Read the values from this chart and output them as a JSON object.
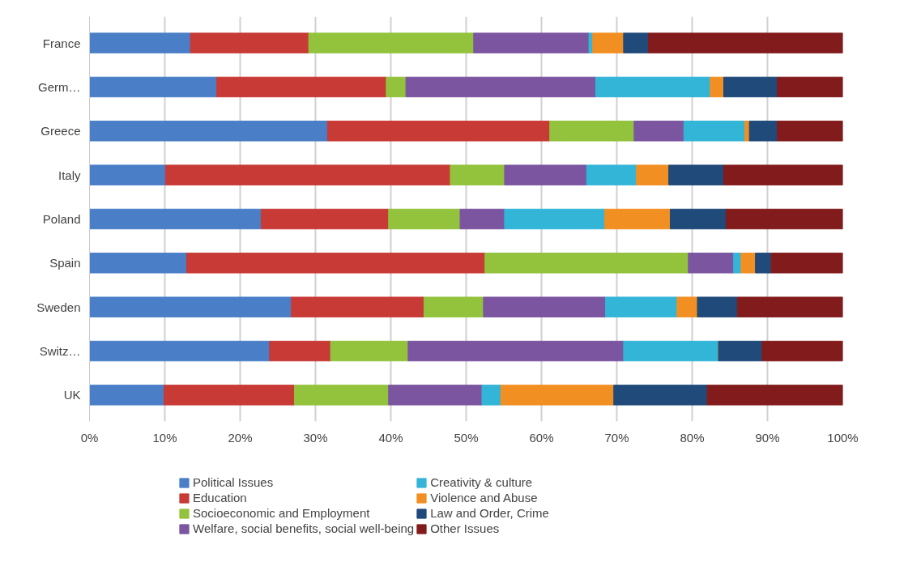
{
  "chart_data": {
    "type": "bar",
    "orientation": "horizontal",
    "stacked": true,
    "categories": [
      "France",
      "Germ…",
      "Greece",
      "Italy",
      "Poland",
      "Spain",
      "Sweden",
      "Switz…",
      "UK"
    ],
    "series": [
      {
        "name": "Political Issues",
        "color": "#4a7fc8",
        "values": [
          13.4,
          16.9,
          31.6,
          10.1,
          22.8,
          12.9,
          26.8,
          23.9,
          9.9
        ]
      },
      {
        "name": "Education",
        "color": "#c83a36",
        "values": [
          15.7,
          22.5,
          29.5,
          37.8,
          16.9,
          39.6,
          17.6,
          8.1,
          17.3
        ]
      },
      {
        "name": "Socioeconomic and Employment",
        "color": "#93c23c",
        "values": [
          21.9,
          2.6,
          11.2,
          7.2,
          9.5,
          27.0,
          7.9,
          10.3,
          12.5
        ]
      },
      {
        "name": "Welfare, social benefits, social well-being",
        "color": "#7b55a0",
        "values": [
          15.3,
          25.2,
          6.6,
          10.9,
          5.9,
          6.0,
          16.2,
          28.6,
          12.4
        ]
      },
      {
        "name": "Creativity & culture",
        "color": "#33b5d8",
        "values": [
          0.5,
          15.2,
          8.1,
          6.6,
          13.3,
          1.0,
          9.5,
          12.6,
          2.5
        ]
      },
      {
        "name": "Violence and Abuse",
        "color": "#f28f22",
        "values": [
          4.1,
          1.8,
          0.6,
          4.3,
          8.7,
          1.9,
          2.7,
          0,
          15.0
        ]
      },
      {
        "name": "Law and Order, Crime",
        "color": "#1f4a7a",
        "values": [
          3.3,
          7.1,
          3.7,
          7.3,
          7.4,
          2.1,
          5.3,
          5.8,
          12.4
        ]
      },
      {
        "name": "Other Issues",
        "color": "#821c1c",
        "values": [
          25.8,
          8.7,
          8.7,
          15.8,
          15.5,
          9.5,
          14.0,
          10.7,
          18.0
        ]
      }
    ],
    "xlim": [
      0,
      100
    ],
    "xticks": [
      {
        "value": 0,
        "label": "0%"
      },
      {
        "value": 10,
        "label": "10%"
      },
      {
        "value": 20,
        "label": "20%"
      },
      {
        "value": 30,
        "label": "30%"
      },
      {
        "value": 40,
        "label": "40%"
      },
      {
        "value": 50,
        "label": "50%"
      },
      {
        "value": 60,
        "label": "60%"
      },
      {
        "value": 70,
        "label": "70%"
      },
      {
        "value": 80,
        "label": "80%"
      },
      {
        "value": 90,
        "label": "90%"
      },
      {
        "value": 100,
        "label": "100%"
      }
    ],
    "grid": "x",
    "legend": "bottom"
  }
}
